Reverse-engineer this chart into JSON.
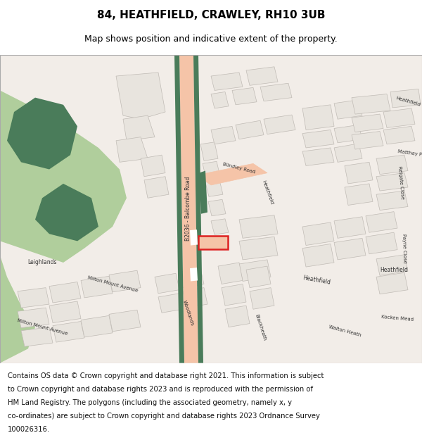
{
  "title": "84, HEATHFIELD, CRAWLEY, RH10 3UB",
  "subtitle": "Map shows position and indicative extent of the property.",
  "footer_lines": [
    "Contains OS data © Crown copyright and database right 2021. This information is subject",
    "to Crown copyright and database rights 2023 and is reproduced with the permission of",
    "HM Land Registry. The polygons (including the associated geometry, namely x, y",
    "co-ordinates) are subject to Crown copyright and database rights 2023 Ordnance Survey",
    "100026316."
  ],
  "map_bg": "#f2ede8",
  "road_salmon": "#f5c4a8",
  "road_green": "#4a7c5a",
  "building_fill": "#e8e4de",
  "building_edge": "#c0bbb5",
  "green_light": "#b0ce9c",
  "green_dark": "#4a7c5a",
  "highlight_red": "#dd2222",
  "title_fontsize": 11,
  "subtitle_fontsize": 9,
  "footer_fontsize": 7.2,
  "label_color": "#333333"
}
